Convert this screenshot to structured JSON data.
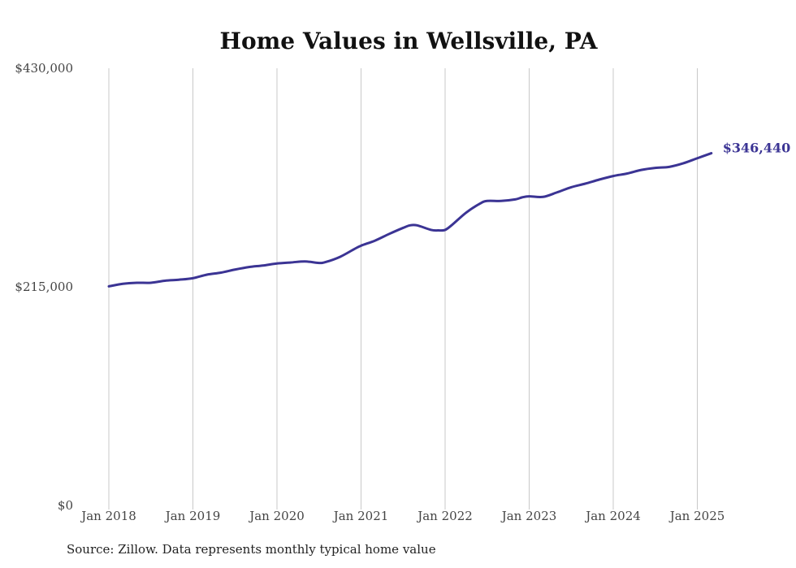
{
  "chart_data": {
    "type": "line",
    "title": "Home Values in Wellsville, PA",
    "xlabel": "",
    "ylabel": "",
    "ylim": [
      0,
      430000
    ],
    "y_ticks": [
      {
        "value": 0,
        "label": "$0"
      },
      {
        "value": 215000,
        "label": "$215,000"
      },
      {
        "value": 430000,
        "label": "$430,000"
      }
    ],
    "x_ticks": [
      {
        "date": "2018-01",
        "label": "Jan 2018"
      },
      {
        "date": "2019-01",
        "label": "Jan 2019"
      },
      {
        "date": "2020-01",
        "label": "Jan 2020"
      },
      {
        "date": "2021-01",
        "label": "Jan 2021"
      },
      {
        "date": "2022-01",
        "label": "Jan 2022"
      },
      {
        "date": "2023-01",
        "label": "Jan 2023"
      },
      {
        "date": "2024-01",
        "label": "Jan 2024"
      },
      {
        "date": "2025-01",
        "label": "Jan 2025"
      }
    ],
    "grid": {
      "vertical": true,
      "horizontal": false
    },
    "series": [
      {
        "color": "#3b3494",
        "points": [
          [
            "2018-01",
            215500
          ],
          [
            "2018-03",
            218000
          ],
          [
            "2018-05",
            219000
          ],
          [
            "2018-07",
            219000
          ],
          [
            "2018-09",
            221000
          ],
          [
            "2018-11",
            222000
          ],
          [
            "2019-01",
            223500
          ],
          [
            "2019-03",
            227000
          ],
          [
            "2019-05",
            229000
          ],
          [
            "2019-07",
            232000
          ],
          [
            "2019-09",
            234500
          ],
          [
            "2019-11",
            236000
          ],
          [
            "2020-01",
            238000
          ],
          [
            "2020-03",
            239000
          ],
          [
            "2020-05",
            240000
          ],
          [
            "2020-07",
            238500
          ],
          [
            "2020-08",
            239500
          ],
          [
            "2020-10",
            244500
          ],
          [
            "2020-12",
            252000
          ],
          [
            "2021-01",
            255500
          ],
          [
            "2021-03",
            260500
          ],
          [
            "2021-05",
            267000
          ],
          [
            "2021-07",
            273000
          ],
          [
            "2021-08",
            275500
          ],
          [
            "2021-09",
            275500
          ],
          [
            "2021-11",
            271000
          ],
          [
            "2021-12",
            270500
          ],
          [
            "2022-01",
            271000
          ],
          [
            "2022-02",
            276000
          ],
          [
            "2022-04",
            288000
          ],
          [
            "2022-06",
            297000
          ],
          [
            "2022-07",
            299500
          ],
          [
            "2022-09",
            299500
          ],
          [
            "2022-11",
            301000
          ],
          [
            "2022-12",
            303000
          ],
          [
            "2023-01",
            304000
          ],
          [
            "2023-03",
            303500
          ],
          [
            "2023-05",
            308000
          ],
          [
            "2023-07",
            313000
          ],
          [
            "2023-09",
            316500
          ],
          [
            "2023-11",
            320500
          ],
          [
            "2024-01",
            324000
          ],
          [
            "2024-03",
            326500
          ],
          [
            "2024-05",
            330000
          ],
          [
            "2024-07",
            332000
          ],
          [
            "2024-09",
            333000
          ],
          [
            "2024-11",
            336500
          ],
          [
            "2025-01",
            341500
          ],
          [
            "2025-03",
            346440
          ]
        ]
      }
    ],
    "annotations": [
      {
        "date": "2025-03",
        "value": 346440,
        "label": "$346,440",
        "color": "#3b3494"
      }
    ],
    "source": "Source: Zillow. Data represents monthly typical home value"
  }
}
